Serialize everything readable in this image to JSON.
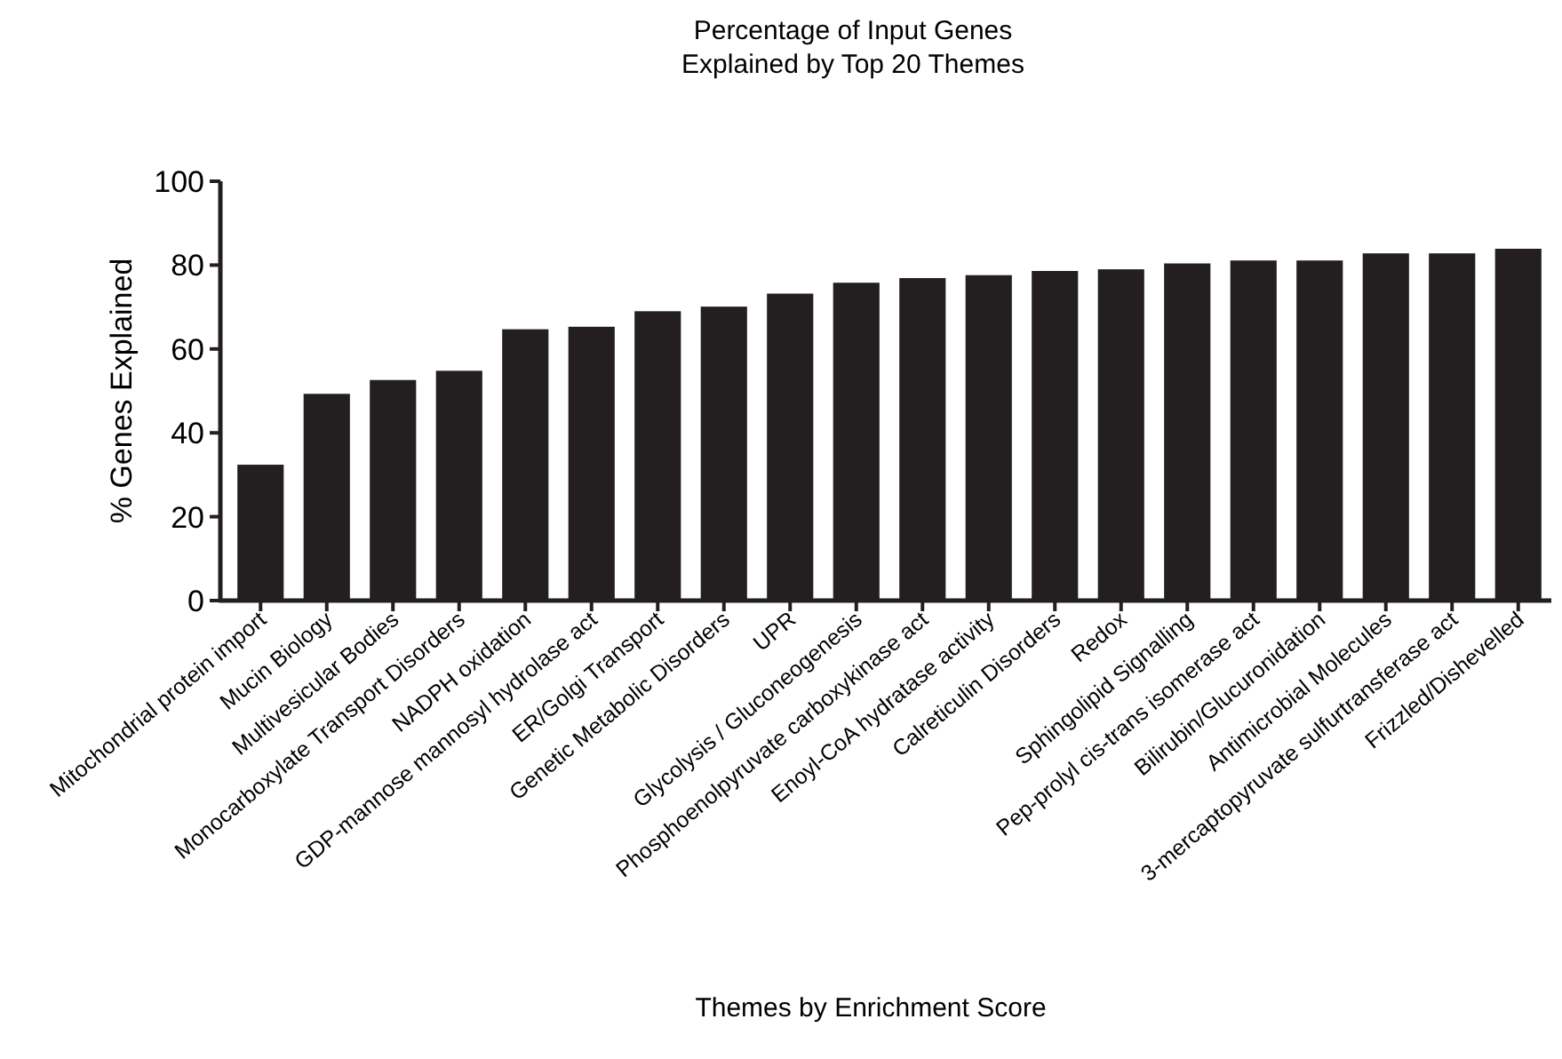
{
  "chart_data": {
    "type": "bar",
    "title": "Percentage of Input Genes\nExplained by Top 20 Themes",
    "xlabel": "Themes by Enrichment Score",
    "ylabel": "% Genes Explained",
    "categories": [
      "Mitochondrial protein import",
      "Mucin Biology",
      "Multivesicular Bodies",
      "Monocarboxylate Transport Disorders",
      "NADPH oxidation",
      "GDP-mannose mannosyl hydrolase act",
      "ER/Golgi Transport",
      "Genetic Metabolic Disorders",
      "UPR",
      "Glycolysis / Gluconeogenesis",
      "Phosphoenolpyruvate carboxykinase act",
      "Enoyl-CoA hydratase activity",
      "Calreticulin Disorders",
      "Redox",
      "Sphingolipid Signalling",
      "Pep-prolyl cis-trans isomerase act",
      "Bilirubin/Glucuronidation",
      "Antimicrobial Molecules",
      "3-mercaptopyruvate sulfurtransferase act",
      "Frizzled/Dishevelled"
    ],
    "values": [
      32.4,
      49.3,
      52.6,
      54.8,
      64.7,
      65.3,
      69,
      70.1,
      73.2,
      75.8,
      76.9,
      77.6,
      78.6,
      79,
      80.4,
      81.1,
      81.1,
      82.8,
      82.8,
      83.9
    ],
    "color": "#231f20",
    "ylim": [
      0,
      100
    ],
    "yticks": [
      0,
      20,
      40,
      60,
      80,
      100
    ]
  }
}
